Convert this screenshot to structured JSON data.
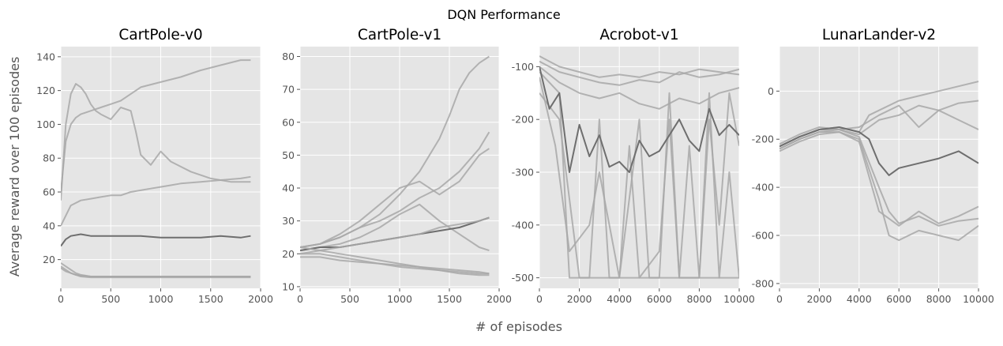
{
  "figure": {
    "suptitle": "DQN Performance",
    "shared_xlabel": "# of episodes",
    "shared_ylabel": "Average reward over 100 episodes"
  },
  "style": {
    "panel_bg": "#e5e5e5",
    "grid": "#ffffff",
    "line_light": "#a8a8a8",
    "line_dark": "#6e6e6e",
    "tick_text": "#555555",
    "title_text": "#000000"
  },
  "chart_data": [
    {
      "type": "line",
      "title": "CartPole-v0",
      "xlim": [
        0,
        2000
      ],
      "ylim": [
        3,
        146
      ],
      "xticks": [
        0,
        500,
        1000,
        1500,
        2000
      ],
      "yticks": [
        20,
        40,
        60,
        80,
        100,
        120,
        140
      ],
      "grid": true,
      "series": [
        {
          "x": [
            0,
            50,
            100,
            150,
            200,
            300,
            400,
            500,
            600,
            700,
            800,
            1000,
            1200,
            1400,
            1600,
            1800,
            1900
          ],
          "y": [
            60,
            90,
            100,
            104,
            106,
            108,
            110,
            112,
            114,
            118,
            122,
            125,
            128,
            132,
            135,
            138,
            138
          ]
        },
        {
          "x": [
            0,
            50,
            100,
            150,
            200,
            250,
            300,
            350,
            400,
            500,
            600,
            700,
            750,
            800,
            900,
            1000,
            1100,
            1200,
            1300,
            1500,
            1700,
            1900
          ],
          "y": [
            55,
            100,
            118,
            124,
            122,
            118,
            112,
            108,
            106,
            103,
            110,
            108,
            96,
            82,
            76,
            84,
            78,
            75,
            72,
            68,
            66,
            66
          ]
        },
        {
          "x": [
            0,
            100,
            200,
            300,
            400,
            500,
            600,
            700,
            800,
            900,
            1000,
            1100,
            1200,
            1400,
            1600,
            1800,
            1900
          ],
          "y": [
            40,
            52,
            55,
            56,
            57,
            58,
            58,
            60,
            61,
            62,
            63,
            64,
            65,
            66,
            67,
            68,
            69
          ]
        },
        {
          "x": [
            0,
            50,
            100,
            200,
            300,
            400,
            600,
            800,
            1000,
            1200,
            1400,
            1600,
            1800,
            1900
          ],
          "y": [
            28,
            32,
            34,
            35,
            34,
            34,
            34,
            34,
            33,
            33,
            33,
            34,
            33,
            34
          ],
          "highlight": true
        },
        {
          "x": [
            0,
            50,
            100,
            150,
            200,
            300,
            400,
            600,
            800,
            1000,
            1400,
            1900
          ],
          "y": [
            18,
            16,
            14,
            12,
            11,
            10,
            10,
            10,
            10,
            10,
            10,
            10
          ]
        },
        {
          "x": [
            0,
            50,
            100,
            150,
            200,
            300,
            400,
            600,
            800,
            1000,
            1400,
            1900
          ],
          "y": [
            16,
            14,
            12,
            11,
            10,
            9.5,
            9.5,
            9.5,
            9.5,
            9.5,
            9.5,
            9.5
          ]
        },
        {
          "x": [
            0,
            50,
            100,
            150,
            200,
            300,
            400,
            600,
            800,
            1000,
            1400,
            1900
          ],
          "y": [
            15,
            13,
            12,
            11,
            10.5,
            10,
            10,
            10,
            10,
            10,
            10,
            10
          ]
        }
      ]
    },
    {
      "type": "line",
      "title": "CartPole-v1",
      "xlim": [
        0,
        2000
      ],
      "ylim": [
        9.5,
        83
      ],
      "xticks": [
        0,
        500,
        1000,
        1500,
        2000
      ],
      "yticks": [
        10,
        20,
        30,
        40,
        50,
        60,
        70,
        80
      ],
      "grid": true,
      "series": [
        {
          "x": [
            0,
            200,
            400,
            600,
            800,
            1000,
            1200,
            1400,
            1500,
            1600,
            1700,
            1800,
            1900
          ],
          "y": [
            22,
            23,
            25,
            28,
            32,
            38,
            45,
            55,
            62,
            70,
            75,
            78,
            80
          ]
        },
        {
          "x": [
            0,
            200,
            400,
            600,
            800,
            1000,
            1200,
            1400,
            1600,
            1800,
            1900
          ],
          "y": [
            22,
            23,
            25,
            28,
            30,
            33,
            37,
            40,
            45,
            52,
            57
          ]
        },
        {
          "x": [
            0,
            200,
            400,
            600,
            800,
            1000,
            1200,
            1400,
            1600,
            1800,
            1900
          ],
          "y": [
            22,
            23,
            26,
            30,
            35,
            40,
            42,
            38,
            42,
            50,
            52
          ]
        },
        {
          "x": [
            0,
            200,
            400,
            600,
            800,
            1000,
            1200,
            1400,
            1600,
            1800,
            1900
          ],
          "y": [
            21,
            22,
            23,
            25,
            28,
            32,
            35,
            30,
            26,
            22,
            21
          ]
        },
        {
          "x": [
            0,
            200,
            400,
            600,
            800,
            1000,
            1200,
            1400,
            1600,
            1800,
            1900
          ],
          "y": [
            21,
            22,
            22,
            23,
            24,
            25,
            26,
            27,
            28,
            30,
            31
          ],
          "highlight": true
        },
        {
          "x": [
            0,
            200,
            400,
            600,
            800,
            1000,
            1200,
            1400,
            1600,
            1800,
            1900
          ],
          "y": [
            20,
            21,
            22,
            23,
            24,
            25,
            26,
            28,
            29,
            30,
            31
          ]
        },
        {
          "x": [
            0,
            200,
            400,
            600,
            800,
            1000,
            1200,
            1400,
            1600,
            1800,
            1900
          ],
          "y": [
            22,
            21,
            20,
            19,
            18,
            17,
            16,
            15.5,
            15,
            14.5,
            14
          ]
        },
        {
          "x": [
            0,
            200,
            400,
            600,
            800,
            1000,
            1200,
            1400,
            1600,
            1800,
            1900
          ],
          "y": [
            20,
            20,
            19,
            18,
            17,
            16.5,
            16,
            15,
            14.5,
            14,
            14
          ]
        },
        {
          "x": [
            0,
            200,
            400,
            600,
            800,
            1000,
            1200,
            1400,
            1600,
            1800,
            1900
          ],
          "y": [
            19,
            19,
            18,
            17.5,
            17,
            16,
            15.5,
            15,
            14,
            13.5,
            13.5
          ]
        }
      ]
    },
    {
      "type": "line",
      "title": "Acrobot-v1",
      "xlim": [
        0,
        10000
      ],
      "ylim": [
        -520,
        -62
      ],
      "xticks": [
        0,
        2000,
        4000,
        6000,
        8000,
        10000
      ],
      "yticks": [
        -500,
        -400,
        -300,
        -200,
        -100
      ],
      "grid": true,
      "series": [
        {
          "x": [
            0,
            500,
            1000,
            2000,
            3000,
            4000,
            5000,
            6000,
            7000,
            8000,
            9000,
            10000
          ],
          "y": [
            -80,
            -90,
            -100,
            -110,
            -120,
            -115,
            -120,
            -110,
            -115,
            -105,
            -110,
            -115
          ]
        },
        {
          "x": [
            0,
            500,
            1000,
            2000,
            3000,
            4000,
            5000,
            6000,
            7000,
            8000,
            9000,
            10000
          ],
          "y": [
            -90,
            -100,
            -110,
            -120,
            -130,
            -135,
            -125,
            -130,
            -110,
            -120,
            -115,
            -105
          ]
        },
        {
          "x": [
            0,
            1000,
            2000,
            3000,
            4000,
            5000,
            6000,
            7000,
            8000,
            9000,
            10000
          ],
          "y": [
            -100,
            -130,
            -150,
            -160,
            -150,
            -170,
            -180,
            -160,
            -170,
            -150,
            -140
          ]
        },
        {
          "x": [
            0,
            1000,
            1500,
            2000,
            3000,
            4000,
            5000,
            6000,
            7000,
            8000,
            9000,
            9500,
            10000
          ],
          "y": [
            -110,
            -150,
            -500,
            -500,
            -500,
            -500,
            -500,
            -500,
            -500,
            -500,
            -500,
            -500,
            -500
          ]
        },
        {
          "x": [
            0,
            1000,
            2000,
            2500,
            3000,
            3500,
            4000,
            5000,
            5500,
            6000,
            6500,
            7000,
            8000,
            8500,
            9000,
            9500,
            10000
          ],
          "y": [
            -150,
            -200,
            -500,
            -500,
            -200,
            -500,
            -500,
            -200,
            -500,
            -500,
            -150,
            -500,
            -500,
            -150,
            -500,
            -300,
            -500
          ]
        },
        {
          "x": [
            0,
            800,
            1500,
            2500,
            3000,
            4000,
            4500,
            5000,
            6000,
            6500,
            7000,
            7500,
            8000,
            8500,
            9000,
            9500,
            10000
          ],
          "y": [
            -120,
            -250,
            -450,
            -400,
            -300,
            -500,
            -250,
            -500,
            -450,
            -200,
            -500,
            -250,
            -500,
            -200,
            -400,
            -150,
            -250
          ]
        },
        {
          "x": [
            0,
            500,
            1000,
            1500,
            2000,
            2500,
            3000,
            3500,
            4000,
            4500,
            5000,
            5500,
            6000,
            6500,
            7000,
            7500,
            8000,
            8500,
            9000,
            9500,
            10000
          ],
          "y": [
            -100,
            -180,
            -150,
            -300,
            -210,
            -270,
            -230,
            -290,
            -280,
            -300,
            -240,
            -270,
            -260,
            -230,
            -200,
            -240,
            -260,
            -180,
            -230,
            -210,
            -230
          ],
          "highlight": true
        }
      ]
    },
    {
      "type": "line",
      "title": "LunarLander-v2",
      "xlim": [
        0,
        10000
      ],
      "ylim": [
        -820,
        185
      ],
      "xticks": [
        0,
        2000,
        4000,
        6000,
        8000,
        10000
      ],
      "yticks": [
        -800,
        -600,
        -400,
        -200,
        0
      ],
      "grid": true,
      "series": [
        {
          "x": [
            0,
            1000,
            2000,
            3000,
            4000,
            4500,
            5000,
            6000,
            7000,
            8000,
            9000,
            10000
          ],
          "y": [
            -230,
            -190,
            -160,
            -150,
            -170,
            -100,
            -80,
            -40,
            -20,
            0,
            20,
            40
          ]
        },
        {
          "x": [
            0,
            1000,
            2000,
            3000,
            4000,
            4500,
            5000,
            6000,
            7000,
            8000,
            9000,
            10000
          ],
          "y": [
            -240,
            -200,
            -170,
            -160,
            -180,
            -150,
            -120,
            -100,
            -60,
            -80,
            -50,
            -40
          ]
        },
        {
          "x": [
            0,
            1000,
            2000,
            3000,
            4000,
            5000,
            6000,
            7000,
            8000,
            9000,
            10000
          ],
          "y": [
            -220,
            -180,
            -150,
            -160,
            -150,
            -100,
            -60,
            -150,
            -80,
            -120,
            -160
          ]
        },
        {
          "x": [
            0,
            1000,
            2000,
            3000,
            4000,
            5000,
            5500,
            6000,
            7000,
            8000,
            9000,
            10000
          ],
          "y": [
            -230,
            -190,
            -160,
            -160,
            -190,
            -400,
            -500,
            -550,
            -520,
            -560,
            -540,
            -530
          ]
        },
        {
          "x": [
            0,
            1000,
            2000,
            3000,
            4000,
            5000,
            5500,
            6000,
            7000,
            8000,
            9000,
            10000
          ],
          "y": [
            -240,
            -200,
            -170,
            -170,
            -200,
            -450,
            -600,
            -620,
            -580,
            -600,
            -620,
            -560
          ]
        },
        {
          "x": [
            0,
            1000,
            2000,
            3000,
            4000,
            5000,
            6000,
            7000,
            8000,
            9000,
            10000
          ],
          "y": [
            -250,
            -210,
            -180,
            -170,
            -210,
            -500,
            -560,
            -500,
            -550,
            -520,
            -480
          ]
        },
        {
          "x": [
            0,
            1000,
            2000,
            3000,
            4000,
            4500,
            5000,
            5500,
            6000,
            7000,
            8000,
            9000,
            10000
          ],
          "y": [
            -230,
            -190,
            -160,
            -150,
            -170,
            -200,
            -300,
            -350,
            -320,
            -300,
            -280,
            -250,
            -300
          ],
          "highlight": true
        }
      ]
    }
  ]
}
